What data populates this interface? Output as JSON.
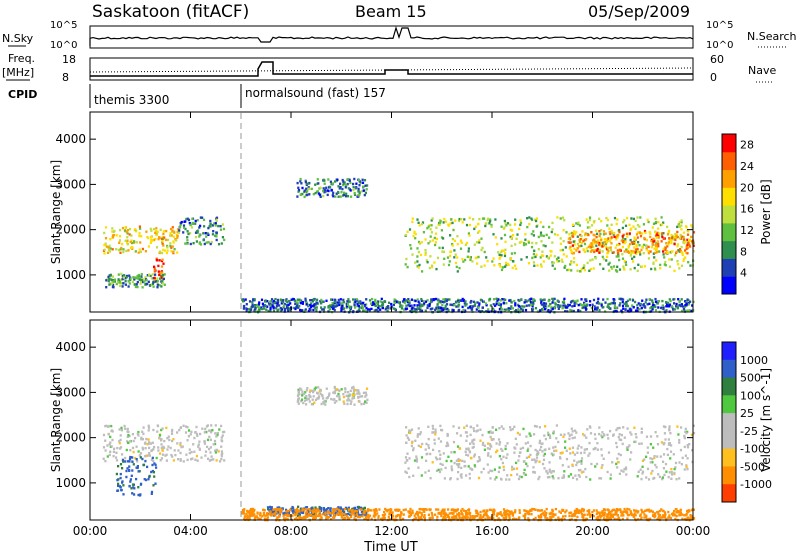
{
  "header": {
    "title": "Saskatoon (fitACF)",
    "beam": "Beam 15",
    "date": "05/Sep/2009"
  },
  "labels": {
    "nsky": "N.Sky",
    "nsearch": "N.Search",
    "freq": "Freq.",
    "mhz": "[MHz]",
    "nave": "Nave",
    "cpid": "CPID",
    "nsky_ticks": [
      "10^5",
      "10^0"
    ],
    "nsearch_ticks": [
      "10^5",
      "10^0"
    ],
    "freq_ticks": [
      "18",
      "8"
    ],
    "nave_ticks": [
      "60",
      "0"
    ]
  },
  "cpid_segments": [
    {
      "name": "themis 3300",
      "start_hour": 0
    },
    {
      "name": "normalsound (fast) 157",
      "start_hour": 6
    }
  ],
  "colors": {
    "power": [
      "#0000ff",
      "#1f3fb5",
      "#2f8f4f",
      "#5fbf3f",
      "#bfdf3f",
      "#ffdf00",
      "#ff9f00",
      "#ff5f00",
      "#ff0000"
    ],
    "velocity": [
      "#1f1fff",
      "#2f5fc8",
      "#2f7f3f",
      "#4fc83f",
      "#bdbdbd",
      "#bdbdbd",
      "#ffbf1f",
      "#ff8f00",
      "#ff3f00",
      "#ff0000"
    ],
    "ground": "#bdbdbd"
  },
  "chart_data": [
    {
      "type": "heatmap",
      "title": "",
      "xlabel": "Time UT",
      "ylabel": "Slant Range [km]",
      "colorbar_label": "Power [dB]",
      "colorbar_ticks": [
        "4",
        "8",
        "12",
        "16",
        "20",
        "24",
        "28"
      ],
      "colorbar_range": [
        0,
        30
      ],
      "xlim": [
        0,
        24
      ],
      "ylim": [
        180,
        4600
      ],
      "x_ticks": [
        "00:00",
        "04:00",
        "08:00",
        "12:00",
        "16:00",
        "20:00",
        "00:00"
      ],
      "y_ticks": [
        "1000",
        "2000",
        "3000",
        "4000"
      ],
      "regions": [
        {
          "t0": 0.5,
          "t1": 3.5,
          "r0": 1500,
          "r1": 2100,
          "value": 18
        },
        {
          "t0": 0.6,
          "t1": 3.0,
          "r0": 750,
          "r1": 1050,
          "value": 10
        },
        {
          "t0": 2.5,
          "t1": 2.9,
          "r0": 900,
          "r1": 1400,
          "value": 28
        },
        {
          "t0": 3.5,
          "t1": 5.3,
          "r0": 1700,
          "r1": 2300,
          "value": 8
        },
        {
          "t0": 8.2,
          "t1": 11.0,
          "r0": 2750,
          "r1": 3150,
          "value": 8
        },
        {
          "t0": 12.5,
          "t1": 24.0,
          "r0": 1100,
          "r1": 2300,
          "value": 14
        },
        {
          "t0": 19.0,
          "t1": 24.0,
          "r0": 1500,
          "r1": 2000,
          "value": 22
        },
        {
          "t0": 6.0,
          "t1": 24.0,
          "r0": 200,
          "r1": 500,
          "value": 6
        }
      ]
    },
    {
      "type": "heatmap",
      "title": "",
      "xlabel": "Time UT",
      "ylabel": "Slant Range [km]",
      "colorbar_label": "Velocity [m s^-1]",
      "colorbar_ticks": [
        "1000",
        "500",
        "100",
        "25",
        "-25",
        "-100",
        "-500",
        "-1000"
      ],
      "xlim": [
        0,
        24
      ],
      "ylim": [
        180,
        4600
      ],
      "x_ticks": [
        "00:00",
        "04:00",
        "08:00",
        "12:00",
        "16:00",
        "20:00",
        "00:00"
      ],
      "y_ticks": [
        "1000",
        "2000",
        "3000",
        "4000"
      ],
      "regions": [
        {
          "t0": 0.5,
          "t1": 5.3,
          "r0": 1500,
          "r1": 2300,
          "value": 0
        },
        {
          "t0": 1.0,
          "t1": 2.6,
          "r0": 750,
          "r1": 1600,
          "value": 120
        },
        {
          "t0": 8.2,
          "t1": 11.0,
          "r0": 2750,
          "r1": 3150,
          "value": 0
        },
        {
          "t0": 12.5,
          "t1": 24.0,
          "r0": 1100,
          "r1": 2300,
          "value": 0
        },
        {
          "t0": 7.0,
          "t1": 11.0,
          "r0": 300,
          "r1": 500,
          "value": 120
        },
        {
          "t0": 6.0,
          "t1": 24.0,
          "r0": 200,
          "r1": 450,
          "value": -150
        }
      ]
    }
  ]
}
